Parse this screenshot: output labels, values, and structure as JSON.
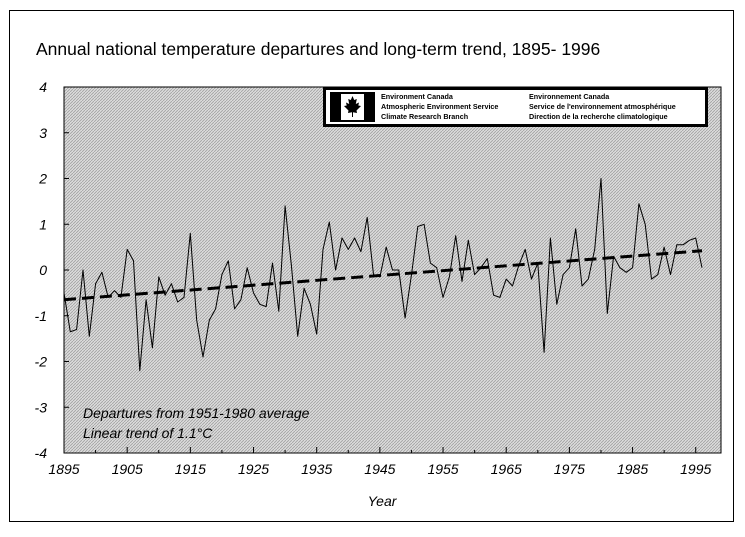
{
  "chart_data": {
    "type": "line",
    "title": "Annual national temperature departures and long-term trend, 1895- 1996",
    "xlabel": "Year",
    "ylabel": "",
    "xlim": [
      1895,
      1999
    ],
    "ylim": [
      -4,
      4
    ],
    "x_ticks": [
      "1895",
      "1905",
      "1915",
      "1925",
      "1935",
      "1945",
      "1955",
      "1965",
      "1975",
      "1985",
      "1995"
    ],
    "y_ticks": [
      "4",
      "3",
      "2",
      "1",
      "0",
      "-1",
      "-2",
      "-3",
      "-4"
    ],
    "grid": false,
    "series": [
      {
        "style": "solid",
        "x": [
          1895,
          1896,
          1897,
          1898,
          1899,
          1900,
          1901,
          1902,
          1903,
          1904,
          1905,
          1906,
          1907,
          1908,
          1909,
          1910,
          1911,
          1912,
          1913,
          1914,
          1915,
          1916,
          1917,
          1918,
          1919,
          1920,
          1921,
          1922,
          1923,
          1924,
          1925,
          1926,
          1927,
          1928,
          1929,
          1930,
          1931,
          1932,
          1933,
          1934,
          1935,
          1936,
          1937,
          1938,
          1939,
          1940,
          1941,
          1942,
          1943,
          1944,
          1945,
          1946,
          1947,
          1948,
          1949,
          1950,
          1951,
          1952,
          1953,
          1954,
          1955,
          1956,
          1957,
          1958,
          1959,
          1960,
          1961,
          1962,
          1963,
          1964,
          1965,
          1966,
          1967,
          1968,
          1969,
          1970,
          1971,
          1972,
          1973,
          1974,
          1975,
          1976,
          1977,
          1978,
          1979,
          1980,
          1981,
          1982,
          1983,
          1984,
          1985,
          1986,
          1987,
          1988,
          1989,
          1990,
          1991,
          1992,
          1993,
          1994,
          1995,
          1996
        ],
        "values": [
          -0.5,
          -1.35,
          -1.3,
          0.0,
          -1.45,
          -0.3,
          -0.05,
          -0.6,
          -0.45,
          -0.6,
          0.45,
          0.2,
          -2.2,
          -0.65,
          -1.7,
          -0.15,
          -0.55,
          -0.3,
          -0.7,
          -0.6,
          0.8,
          -1.1,
          -1.9,
          -1.1,
          -0.85,
          -0.1,
          0.2,
          -0.85,
          -0.65,
          0.05,
          -0.5,
          -0.75,
          -0.8,
          0.15,
          -0.9,
          1.4,
          0.1,
          -1.45,
          -0.4,
          -0.75,
          -1.4,
          0.45,
          1.05,
          0.0,
          0.7,
          0.45,
          0.7,
          0.4,
          1.15,
          -0.1,
          -0.15,
          0.5,
          0.0,
          0.0,
          -1.05,
          -0.1,
          0.95,
          1.0,
          0.15,
          0.05,
          -0.6,
          -0.15,
          0.75,
          -0.25,
          0.65,
          -0.1,
          0.05,
          0.25,
          -0.55,
          -0.6,
          -0.2,
          -0.35,
          0.1,
          0.45,
          -0.2,
          0.15,
          -1.8,
          0.7,
          -0.75,
          -0.1,
          0.05,
          0.9,
          -0.35,
          -0.2,
          0.45,
          2.0,
          -0.95,
          0.3,
          0.05,
          -0.05,
          0.05,
          1.45,
          1.0,
          -0.2,
          -0.1,
          0.5,
          -0.1,
          0.55,
          0.55,
          0.65,
          0.7,
          0.05
        ]
      },
      {
        "style": "dashed",
        "x": [
          1895,
          1996
        ],
        "values": [
          -0.65,
          0.42
        ]
      }
    ],
    "annotations": [
      "Departures from 1951-1980 average",
      "Linear trend of 1.1°C"
    ]
  },
  "logo": {
    "lines_left": [
      "Environment Canada",
      "Atmospheric Environment Service",
      "Climate Research Branch"
    ],
    "lines_right": [
      "Environnement Canada",
      "Service de l'environnement atmosphérique",
      "Direction de la recherche climatologique"
    ]
  },
  "colors": {
    "line": "#000000",
    "plot_background": "#d9d9d9",
    "hatch": "#9a9a9a"
  }
}
